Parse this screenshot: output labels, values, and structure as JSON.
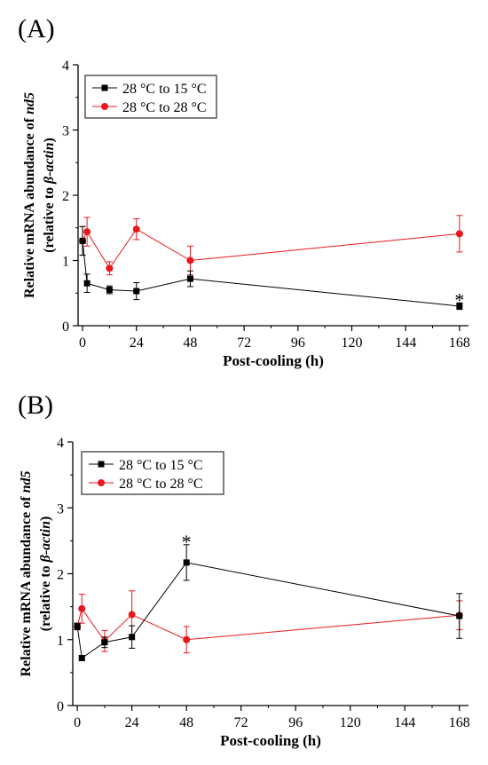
{
  "chart_data": [
    {
      "panel_label": "(A)",
      "type": "line",
      "xlabel": "Post-cooling (h)",
      "ylabel_lines": [
        [
          {
            "text": "Relative mRNA abundance of ",
            "italic": false
          },
          {
            "text": "nd5",
            "italic": true
          }
        ],
        [
          {
            "text": "(relative to ",
            "italic": false
          },
          {
            "text": "β-actin",
            "italic": true
          },
          {
            "text": ")",
            "italic": false
          }
        ]
      ],
      "xlim": [
        -2,
        172
      ],
      "ylim": [
        0,
        4
      ],
      "xticks": [
        0,
        24,
        48,
        72,
        96,
        120,
        144,
        168
      ],
      "xtick_labels": [
        "0",
        "24",
        "48",
        "72",
        "96",
        "120",
        "144",
        "168"
      ],
      "yticks": [
        0,
        1,
        2,
        3,
        4
      ],
      "ytick_labels": [
        "0",
        "1",
        "2",
        "3",
        "4"
      ],
      "legend_position": "top-left",
      "grid": false,
      "series": [
        {
          "name": "28 °C to 15 °C",
          "color": "#000000",
          "marker": "square",
          "x": [
            0,
            2,
            12,
            24,
            48,
            168
          ],
          "y": [
            1.3,
            0.65,
            0.55,
            0.53,
            0.72,
            0.3
          ],
          "err": [
            0.22,
            0.14,
            0.06,
            0.13,
            0.12,
            0.05
          ]
        },
        {
          "name": "28 °C to 28 °C",
          "color": "#e8191e",
          "marker": "circle",
          "x": [
            0,
            2,
            12,
            24,
            48,
            168
          ],
          "y": [
            1.3,
            1.44,
            0.88,
            1.48,
            1.0,
            1.41
          ],
          "err": [
            0.22,
            0.22,
            0.1,
            0.16,
            0.22,
            0.28
          ]
        }
      ],
      "annotations": [
        {
          "text": "*",
          "x": 168,
          "y": 0.43
        }
      ]
    },
    {
      "panel_label": "(B)",
      "type": "line",
      "xlabel": "Post-cooling (h)",
      "ylabel_lines": [
        [
          {
            "text": "Relative mRNA abundance of ",
            "italic": false
          },
          {
            "text": "nd5",
            "italic": true
          }
        ],
        [
          {
            "text": "(relative to ",
            "italic": false
          },
          {
            "text": "β-actin",
            "italic": true
          },
          {
            "text": ")",
            "italic": false
          }
        ]
      ],
      "xlim": [
        -2,
        172
      ],
      "ylim": [
        0,
        4
      ],
      "xticks": [
        0,
        24,
        48,
        72,
        96,
        120,
        144,
        168
      ],
      "xtick_labels": [
        "0",
        "24",
        "48",
        "72",
        "96",
        "120",
        "144",
        "168"
      ],
      "yticks": [
        0,
        1,
        2,
        3,
        4
      ],
      "ytick_labels": [
        "0",
        "1",
        "2",
        "3",
        "4"
      ],
      "legend_position": "top-left",
      "grid": false,
      "series": [
        {
          "name": "28 °C to 15 °C",
          "color": "#000000",
          "marker": "square",
          "x": [
            0,
            2,
            12,
            24,
            48,
            168
          ],
          "y": [
            1.2,
            0.72,
            0.96,
            1.04,
            2.17,
            1.36
          ],
          "err": [
            0.05,
            0.04,
            0.08,
            0.17,
            0.27,
            0.34
          ]
        },
        {
          "name": "28 °C to 28 °C",
          "color": "#e8191e",
          "marker": "circle",
          "x": [
            0,
            2,
            12,
            24,
            48,
            168
          ],
          "y": [
            1.2,
            1.47,
            0.98,
            1.38,
            1.0,
            1.37
          ],
          "err": [
            0.05,
            0.22,
            0.16,
            0.36,
            0.2,
            0.22
          ]
        }
      ],
      "annotations": [
        {
          "text": "*",
          "x": 48,
          "y": 2.52
        }
      ]
    }
  ]
}
